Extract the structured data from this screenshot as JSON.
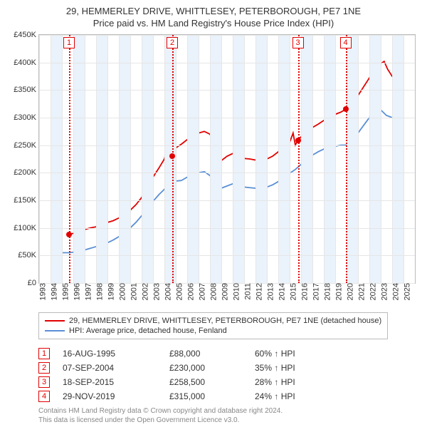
{
  "title_line1": "29, HEMMERLEY DRIVE, WHITTLESEY, PETERBOROUGH, PE7 1NE",
  "title_line2": "Price paid vs. HM Land Registry's House Price Index (HPI)",
  "chart": {
    "xlim": [
      1993,
      2026
    ],
    "ylim": [
      0,
      450000
    ],
    "ytick_step": 50000,
    "yticks": [
      "£0",
      "£50K",
      "£100K",
      "£150K",
      "£200K",
      "£250K",
      "£300K",
      "£350K",
      "£400K",
      "£450K"
    ],
    "xticks": [
      1993,
      1994,
      1995,
      1996,
      1997,
      1998,
      1999,
      2000,
      2001,
      2002,
      2003,
      2004,
      2005,
      2006,
      2007,
      2008,
      2009,
      2010,
      2011,
      2012,
      2013,
      2014,
      2015,
      2016,
      2017,
      2018,
      2019,
      2020,
      2021,
      2022,
      2023,
      2024,
      2025
    ],
    "band_color": "#eaf2fb",
    "grid_color": "#e6e6e6",
    "colors": {
      "price": "#e10000",
      "hpi": "#5a8fd6"
    },
    "series_price": [
      [
        1995.6,
        88000
      ],
      [
        1996.0,
        90000
      ],
      [
        1996.5,
        93000
      ],
      [
        1997.0,
        97000
      ],
      [
        1997.5,
        100000
      ],
      [
        1998.0,
        102000
      ],
      [
        1998.5,
        106000
      ],
      [
        1999.0,
        110000
      ],
      [
        1999.5,
        113000
      ],
      [
        2000.0,
        118000
      ],
      [
        2000.5,
        124000
      ],
      [
        2001.0,
        132000
      ],
      [
        2001.5,
        142000
      ],
      [
        2002.0,
        155000
      ],
      [
        2002.5,
        172000
      ],
      [
        2003.0,
        192000
      ],
      [
        2003.5,
        208000
      ],
      [
        2004.0,
        225000
      ],
      [
        2004.3,
        248000
      ],
      [
        2004.5,
        270000
      ],
      [
        2004.7,
        230000
      ],
      [
        2005.0,
        245000
      ],
      [
        2005.5,
        252000
      ],
      [
        2006.0,
        260000
      ],
      [
        2006.5,
        266000
      ],
      [
        2007.0,
        272000
      ],
      [
        2007.5,
        275000
      ],
      [
        2008.0,
        270000
      ],
      [
        2008.5,
        250000
      ],
      [
        2008.8,
        228000
      ],
      [
        2009.0,
        222000
      ],
      [
        2009.5,
        230000
      ],
      [
        2010.0,
        235000
      ],
      [
        2010.5,
        233000
      ],
      [
        2011.0,
        226000
      ],
      [
        2011.5,
        225000
      ],
      [
        2012.0,
        223000
      ],
      [
        2012.5,
        220000
      ],
      [
        2013.0,
        225000
      ],
      [
        2013.5,
        230000
      ],
      [
        2014.0,
        238000
      ],
      [
        2014.5,
        248000
      ],
      [
        2015.0,
        255000
      ],
      [
        2015.3,
        272000
      ],
      [
        2015.5,
        250000
      ],
      [
        2015.7,
        258500
      ],
      [
        2016.0,
        265000
      ],
      [
        2016.5,
        275000
      ],
      [
        2017.0,
        282000
      ],
      [
        2017.5,
        288000
      ],
      [
        2018.0,
        295000
      ],
      [
        2018.5,
        300000
      ],
      [
        2019.0,
        306000
      ],
      [
        2019.5,
        310000
      ],
      [
        2019.9,
        315000
      ],
      [
        2020.2,
        312000
      ],
      [
        2020.5,
        322000
      ],
      [
        2021.0,
        340000
      ],
      [
        2021.5,
        356000
      ],
      [
        2022.0,
        372000
      ],
      [
        2022.5,
        388000
      ],
      [
        2023.0,
        398000
      ],
      [
        2023.3,
        402000
      ],
      [
        2023.6,
        388000
      ],
      [
        2024.0,
        375000
      ],
      [
        2024.5,
        380000
      ],
      [
        2025.0,
        376000
      ]
    ],
    "series_hpi": [
      [
        1995.0,
        55000
      ],
      [
        1995.6,
        55000
      ],
      [
        1996.0,
        56000
      ],
      [
        1996.5,
        58000
      ],
      [
        1997.0,
        60000
      ],
      [
        1997.5,
        63000
      ],
      [
        1998.0,
        66000
      ],
      [
        1998.5,
        69000
      ],
      [
        1999.0,
        73000
      ],
      [
        1999.5,
        78000
      ],
      [
        2000.0,
        84000
      ],
      [
        2000.5,
        92000
      ],
      [
        2001.0,
        100000
      ],
      [
        2001.5,
        110000
      ],
      [
        2002.0,
        122000
      ],
      [
        2002.5,
        135000
      ],
      [
        2003.0,
        148000
      ],
      [
        2003.5,
        160000
      ],
      [
        2004.0,
        170000
      ],
      [
        2004.5,
        180000
      ],
      [
        2005.0,
        185000
      ],
      [
        2005.5,
        186000
      ],
      [
        2006.0,
        192000
      ],
      [
        2006.5,
        196000
      ],
      [
        2007.0,
        200000
      ],
      [
        2007.5,
        202000
      ],
      [
        2008.0,
        195000
      ],
      [
        2008.5,
        180000
      ],
      [
        2009.0,
        172000
      ],
      [
        2009.5,
        176000
      ],
      [
        2010.0,
        180000
      ],
      [
        2010.5,
        178000
      ],
      [
        2011.0,
        174000
      ],
      [
        2011.5,
        173000
      ],
      [
        2012.0,
        172000
      ],
      [
        2012.5,
        171000
      ],
      [
        2013.0,
        174000
      ],
      [
        2013.5,
        178000
      ],
      [
        2014.0,
        184000
      ],
      [
        2014.5,
        192000
      ],
      [
        2015.0,
        199000
      ],
      [
        2015.5,
        206000
      ],
      [
        2016.0,
        215000
      ],
      [
        2016.5,
        224000
      ],
      [
        2017.0,
        232000
      ],
      [
        2017.5,
        238000
      ],
      [
        2018.0,
        243000
      ],
      [
        2018.5,
        246000
      ],
      [
        2019.0,
        248000
      ],
      [
        2019.5,
        250000
      ],
      [
        2020.0,
        250000
      ],
      [
        2020.5,
        258000
      ],
      [
        2021.0,
        272000
      ],
      [
        2021.5,
        286000
      ],
      [
        2022.0,
        300000
      ],
      [
        2022.5,
        312000
      ],
      [
        2023.0,
        314000
      ],
      [
        2023.5,
        304000
      ],
      [
        2024.0,
        300000
      ],
      [
        2024.5,
        306000
      ],
      [
        2025.0,
        305000
      ]
    ],
    "sales": [
      {
        "n": "1",
        "year": 1995.63,
        "date": "16-AUG-1995",
        "price": 88000,
        "price_label": "£88,000",
        "vs": "60% ↑ HPI"
      },
      {
        "n": "2",
        "year": 2004.69,
        "date": "07-SEP-2004",
        "price": 230000,
        "price_label": "£230,000",
        "vs": "35% ↑ HPI"
      },
      {
        "n": "3",
        "year": 2015.72,
        "date": "18-SEP-2015",
        "price": 258500,
        "price_label": "£258,500",
        "vs": "28% ↑ HPI"
      },
      {
        "n": "4",
        "year": 2019.91,
        "date": "29-NOV-2019",
        "price": 315000,
        "price_label": "£315,000",
        "vs": "24% ↑ HPI"
      }
    ]
  },
  "legend": {
    "price": "29, HEMMERLEY DRIVE, WHITTLESEY, PETERBOROUGH, PE7 1NE (detached house)",
    "hpi": "HPI: Average price, detached house, Fenland"
  },
  "footer_line1": "Contains HM Land Registry data © Crown copyright and database right 2024.",
  "footer_line2": "This data is licensed under the Open Government Licence v3.0."
}
